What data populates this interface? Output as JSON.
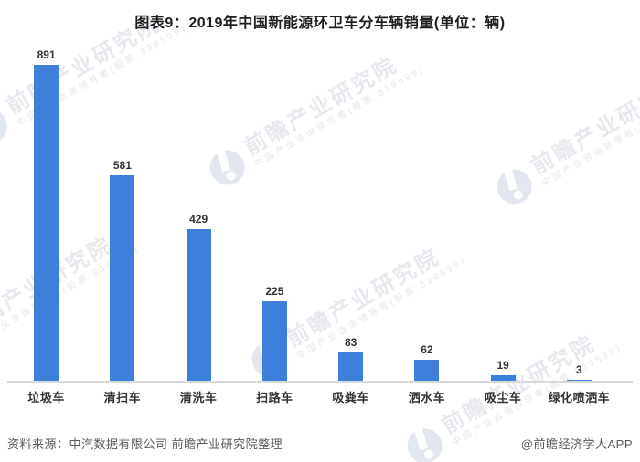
{
  "title": "图表9：2019年中国新能源环卫车分车辆销量(单位：辆)",
  "chart_data": {
    "type": "bar",
    "title": "图表9：2019年中国新能源环卫车分车辆销量(单位：辆)",
    "categories": [
      "垃圾车",
      "清扫车",
      "清洗车",
      "扫路车",
      "吸粪车",
      "洒水车",
      "吸尘车",
      "绿化喷洒车"
    ],
    "values": [
      891,
      581,
      429,
      225,
      83,
      62,
      19,
      3
    ],
    "xlabel": "",
    "ylabel": "单位：辆",
    "ylim": [
      0,
      945
    ],
    "grid": false,
    "legend": "none",
    "value_labels_shown": true,
    "bar_color": "#3E7FD9",
    "axis_line_color": "#d9d9d9"
  },
  "footer": {
    "source": "资料来源：中汽数据有限公司 前瞻产业研究院整理",
    "credit": "@前瞻经济学人APP"
  },
  "watermark": {
    "logo_icon": "qianzhan-circle-logo",
    "brand": "前瞻产业研究院",
    "subtitle": "中国产业咨询领导者(股票:839599)",
    "text_color": "#e7e9ee"
  }
}
